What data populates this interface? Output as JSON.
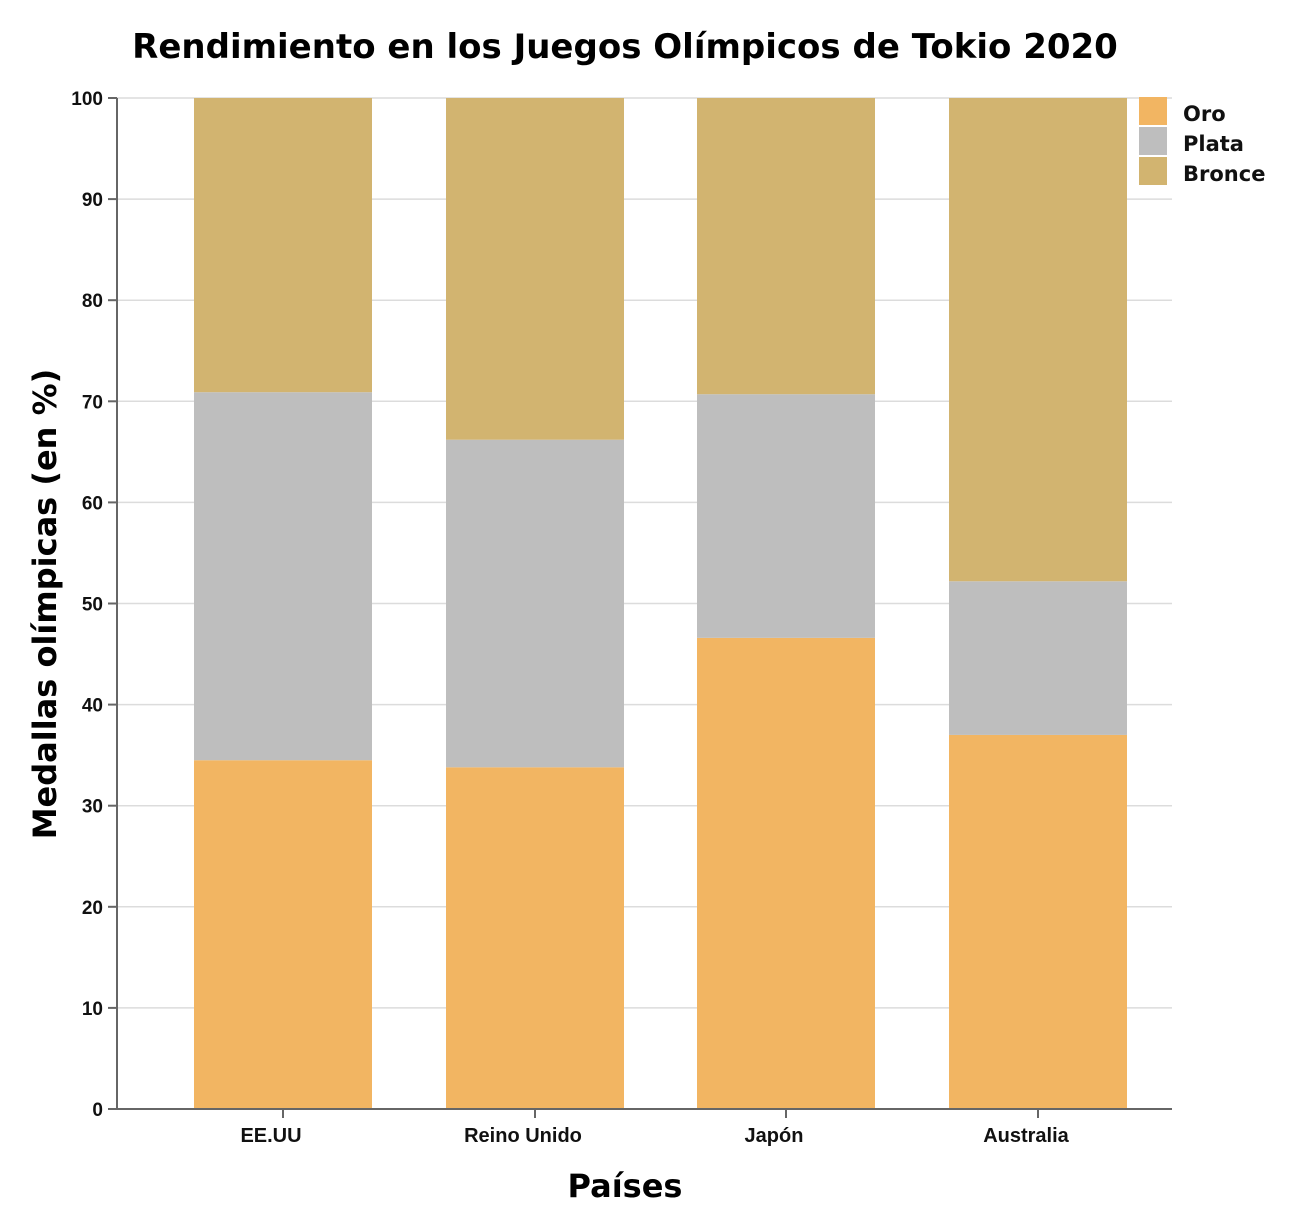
{
  "chart_data": {
    "type": "bar",
    "stacked": true,
    "title": "Rendimiento en los Juegos Olímpicos de Tokio 2020",
    "xlabel": "Países",
    "ylabel": "Medallas olímpicas (en %)",
    "categories": [
      "EE.UU",
      "Reino Unido",
      "Japón",
      "Australia"
    ],
    "series": [
      {
        "name": "Oro",
        "color": "#f2b562",
        "values": [
          34.5,
          33.8,
          46.6,
          37.0
        ]
      },
      {
        "name": "Plata",
        "color": "#bebebe",
        "values": [
          36.4,
          32.4,
          24.1,
          15.2
        ]
      },
      {
        "name": "Bronce",
        "color": "#d2b470",
        "values": [
          29.1,
          33.8,
          29.3,
          47.8
        ]
      }
    ],
    "ylim": [
      0,
      100
    ],
    "yticks": [
      0,
      10,
      20,
      30,
      40,
      50,
      60,
      70,
      80,
      90,
      100
    ],
    "grid": true,
    "legend_position": "top-right"
  }
}
